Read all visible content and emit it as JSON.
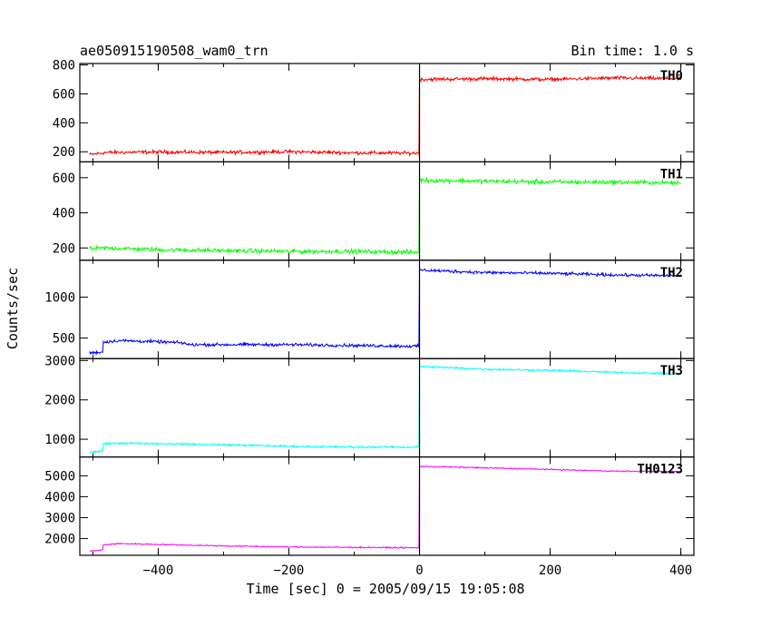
{
  "title": "ae050915190508_wam0_trn",
  "bin_time": "Bin time: 1.0 s",
  "ylabel": "Counts/sec",
  "xlabel": "Time [sec] 0 = 2005/09/15 19:05:08",
  "chart_data": {
    "type": "line",
    "title": "ae050915190508_wam0_trn",
    "xlabel": "Time [sec] 0 = 2005/09/15 19:05:08",
    "ylabel": "Counts/sec",
    "xlim": [
      -520,
      420
    ],
    "x_ticks": [
      -400,
      -200,
      0,
      200,
      400
    ],
    "x_tick_labels": [
      "−400",
      "−200",
      "0",
      "200",
      "400"
    ],
    "grid": false,
    "vertical_marker_x": 0,
    "panels": [
      {
        "name": "TH0",
        "color": "#ff0000",
        "ylim": [
          130,
          810
        ],
        "y_ticks": [
          200,
          400,
          600,
          800
        ],
        "series_x": [
          -505,
          -480,
          -400,
          -300,
          -200,
          -100,
          -1,
          0,
          100,
          200,
          300,
          400
        ],
        "series_y": [
          180,
          195,
          198,
          195,
          200,
          193,
          190,
          700,
          705,
          700,
          710,
          705
        ],
        "noise": 18
      },
      {
        "name": "TH1",
        "color": "#00ff00",
        "ylim": [
          130,
          690
        ],
        "y_ticks": [
          200,
          400,
          600
        ],
        "series_x": [
          -505,
          -480,
          -400,
          -300,
          -200,
          -100,
          -1,
          0,
          100,
          200,
          300,
          400
        ],
        "series_y": [
          195,
          200,
          190,
          185,
          180,
          180,
          175,
          585,
          580,
          575,
          575,
          570
        ],
        "noise": 18
      },
      {
        "name": "TH2",
        "color": "#0000ff",
        "ylim": [
          250,
          1450
        ],
        "y_ticks": [
          500,
          1000
        ],
        "series_x": [
          -505,
          -485,
          -484,
          -460,
          -400,
          -360,
          -355,
          -200,
          -100,
          -1,
          0,
          100,
          200,
          300,
          400
        ],
        "series_y": [
          320,
          330,
          450,
          470,
          455,
          440,
          420,
          420,
          410,
          400,
          1330,
          1300,
          1290,
          1270,
          1260
        ],
        "noise": 28
      },
      {
        "name": "TH3",
        "color": "#00ffff",
        "ylim": [
          550,
          3050
        ],
        "y_ticks": [
          1000,
          2000,
          3000
        ],
        "series_x": [
          -505,
          -485,
          -484,
          -460,
          -400,
          -300,
          -200,
          -100,
          -1,
          0,
          100,
          200,
          300,
          400
        ],
        "series_y": [
          670,
          700,
          880,
          900,
          890,
          860,
          820,
          800,
          800,
          2850,
          2780,
          2750,
          2700,
          2660
        ],
        "noise": 40
      },
      {
        "name": "TH0123",
        "color": "#ff00ff",
        "ylim": [
          1200,
          5900
        ],
        "y_ticks": [
          2000,
          3000,
          4000,
          5000
        ],
        "series_x": [
          -505,
          -485,
          -484,
          -460,
          -400,
          -300,
          -200,
          -100,
          -1,
          0,
          100,
          200,
          300,
          400
        ],
        "series_y": [
          1400,
          1450,
          1700,
          1760,
          1720,
          1650,
          1600,
          1580,
          1560,
          5450,
          5380,
          5300,
          5220,
          5200
        ],
        "noise": 45
      }
    ]
  }
}
